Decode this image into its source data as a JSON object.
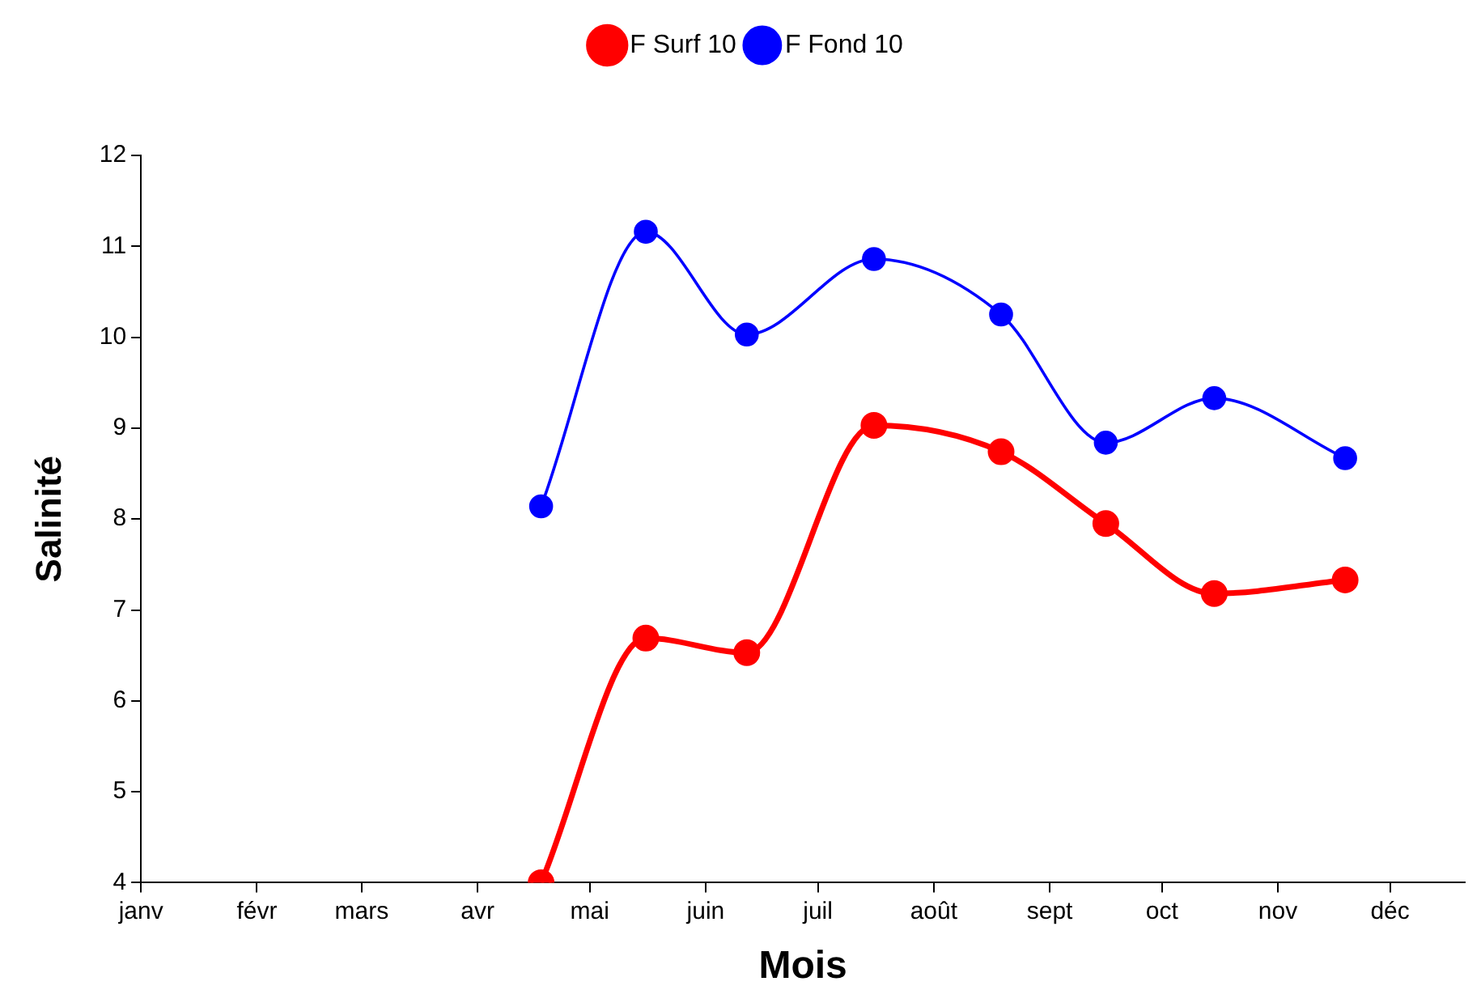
{
  "chart_data": {
    "type": "line",
    "xlabel": "Mois",
    "ylabel": "Salinité",
    "x": [
      "--04-18",
      "--05-16",
      "--06-12",
      "--07-16",
      "--08-19",
      "--09-16",
      "--10-15",
      "--11-19"
    ],
    "series": [
      {
        "name": "F Surf 10",
        "color": "#ff0000",
        "values": [
          4.0,
          6.69,
          6.53,
          9.03,
          8.74,
          7.95,
          7.18,
          7.33
        ]
      },
      {
        "name": "F Fond 10",
        "color": "#0000ff",
        "values": [
          8.14,
          11.16,
          10.03,
          10.86,
          10.25,
          8.84,
          9.33,
          8.67
        ]
      }
    ],
    "xlim": [
      "--01-01",
      "--12-21"
    ],
    "xticks": [
      {
        "value": "--01-01",
        "label": "janv"
      },
      {
        "value": "--02-01",
        "label": "févr"
      },
      {
        "value": "--03-01",
        "label": "mars"
      },
      {
        "value": "--04-01",
        "label": "avr"
      },
      {
        "value": "--05-01",
        "label": "mai"
      },
      {
        "value": "--06-01",
        "label": "juin"
      },
      {
        "value": "--07-01",
        "label": "juil"
      },
      {
        "value": "--08-01",
        "label": "août"
      },
      {
        "value": "--09-01",
        "label": "sept"
      },
      {
        "value": "--10-01",
        "label": "oct"
      },
      {
        "value": "--11-01",
        "label": "nov"
      },
      {
        "value": "--12-01",
        "label": "déc"
      }
    ],
    "ylim": [
      4,
      12
    ],
    "yticks": [
      4,
      5,
      6,
      7,
      8,
      9,
      10,
      11,
      12
    ],
    "legend": "top",
    "marker": "circle",
    "line_style": "solid"
  }
}
